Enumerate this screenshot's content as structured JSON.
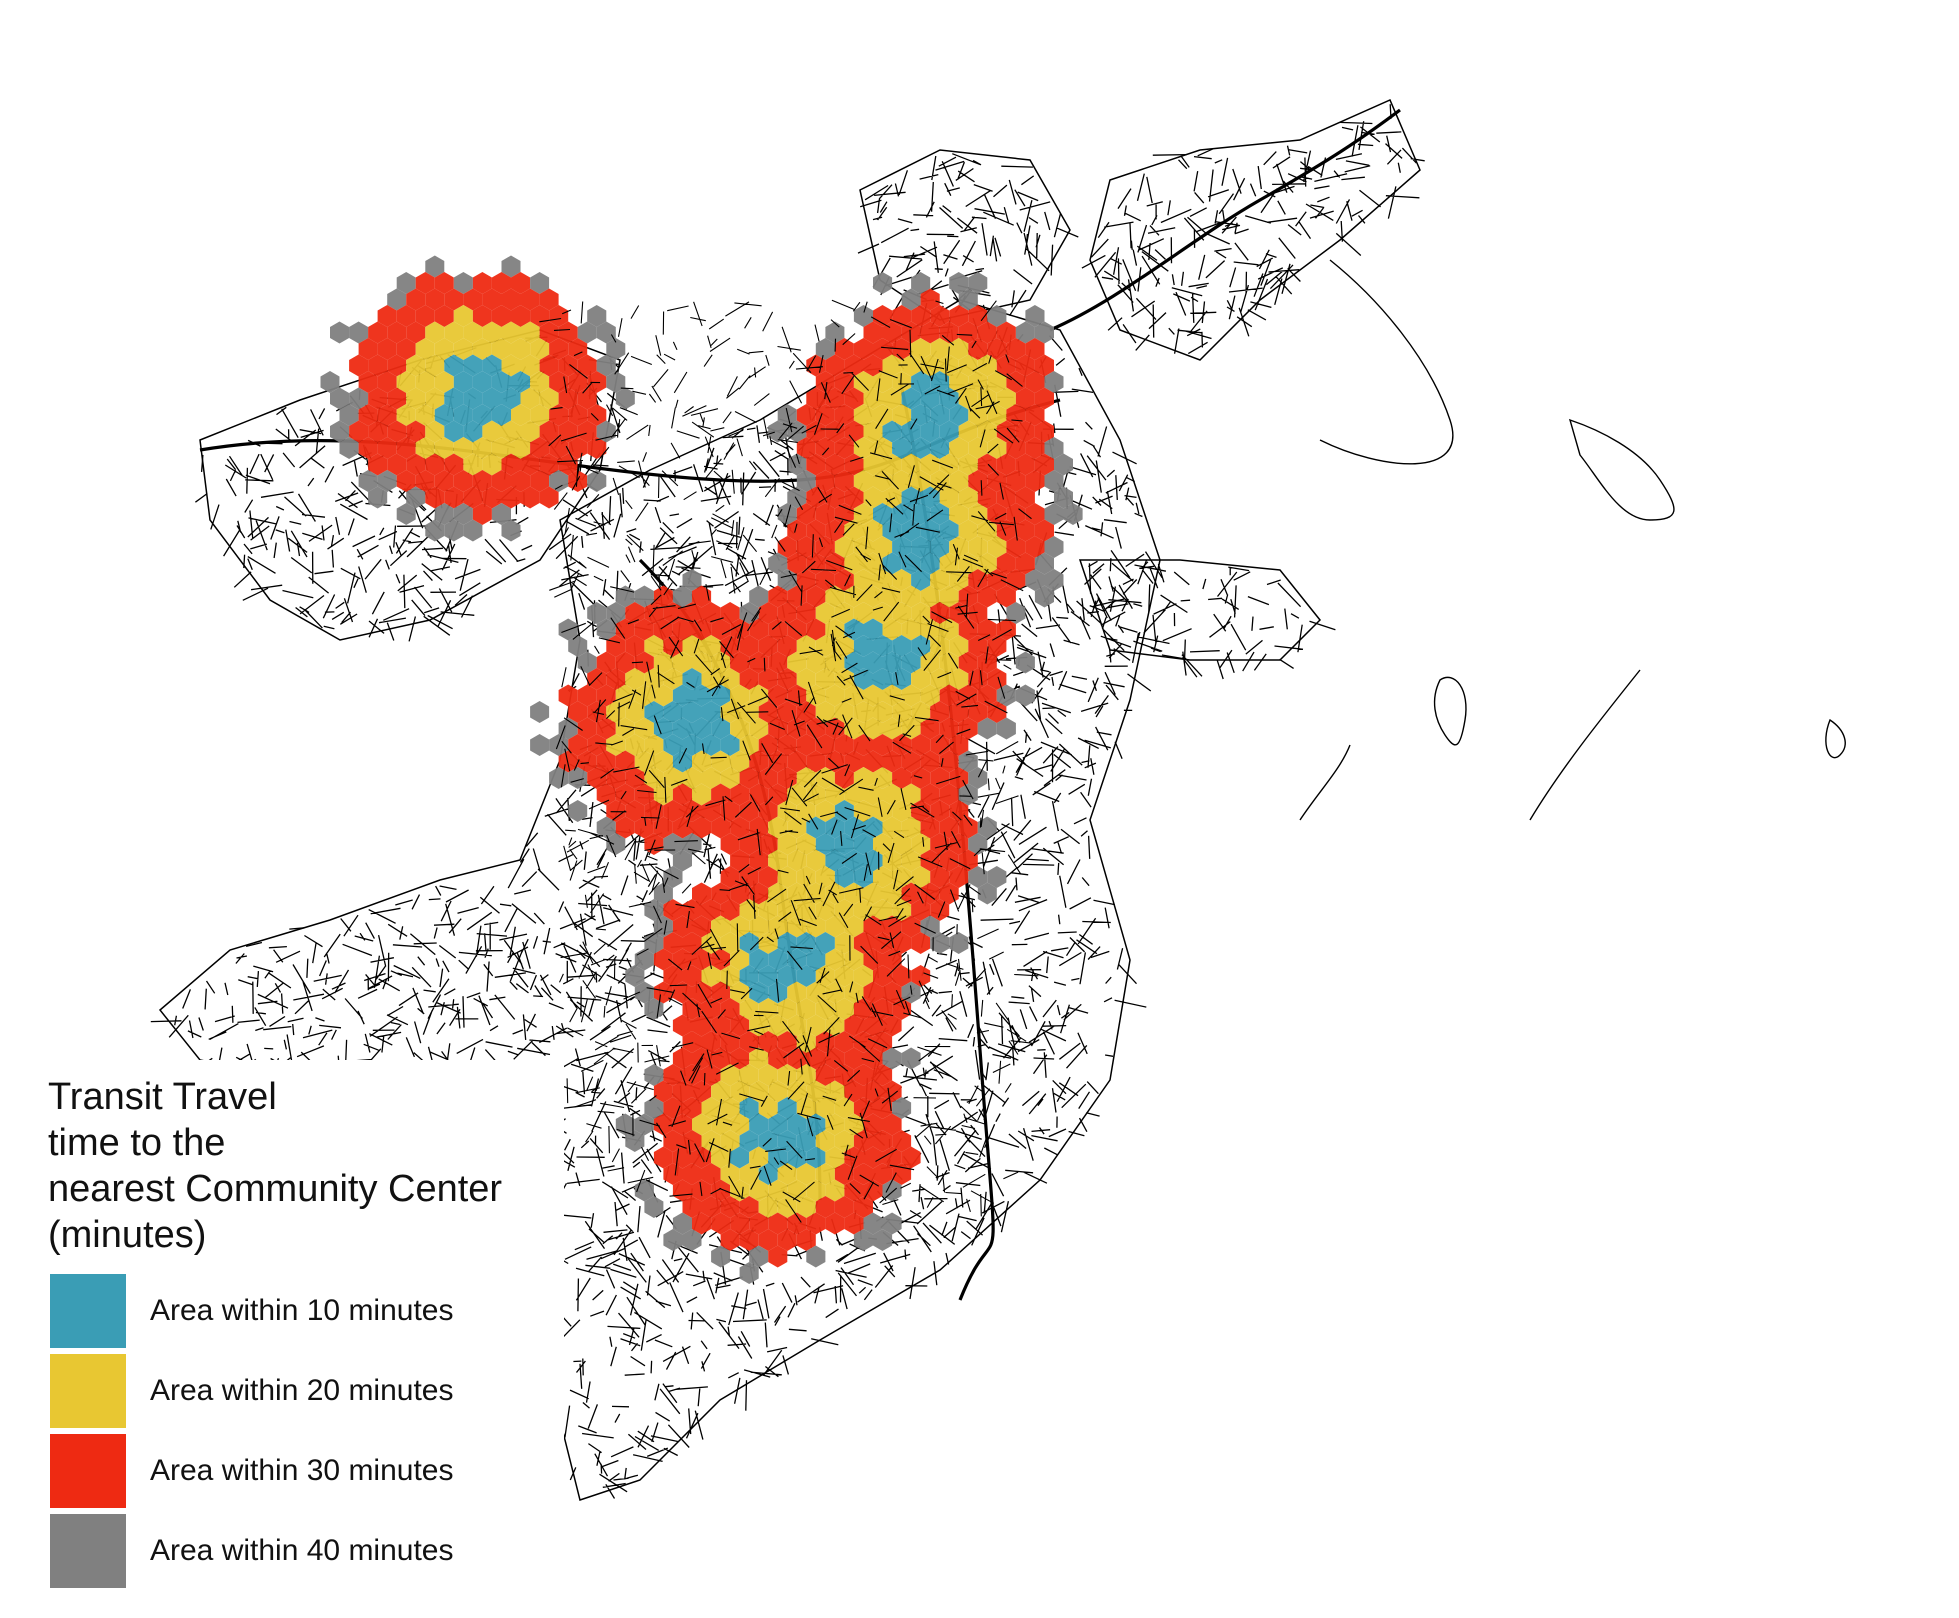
{
  "map": {
    "colors": {
      "road": "#000000",
      "within_10": "#3a9db5",
      "within_20": "#e8c732",
      "within_30": "#ee2a12",
      "within_40": "#808080",
      "background": "#ffffff"
    }
  },
  "legend": {
    "title_lines": [
      "Transit Travel",
      "time to the",
      "nearest Community Center",
      "(minutes)"
    ],
    "items": [
      {
        "label": "Area within 10 minutes",
        "color": "#3a9db5"
      },
      {
        "label": "Area within 20 minutes",
        "color": "#e8c732"
      },
      {
        "label": "Area within 30 minutes",
        "color": "#ee2a12"
      },
      {
        "label": "Area within 40 minutes",
        "color": "#808080"
      }
    ]
  }
}
